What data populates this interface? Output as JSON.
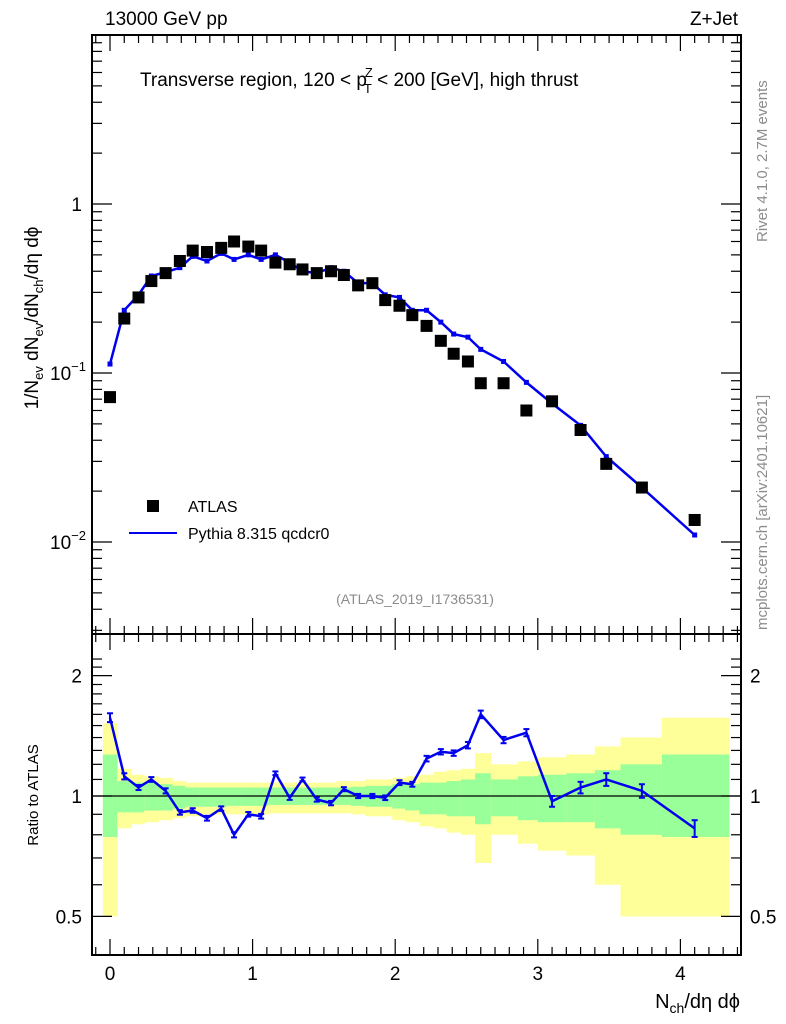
{
  "header": {
    "left": "13000 GeV pp",
    "right": "Z+Jet"
  },
  "side_labels": {
    "rivet": "Rivet 4.1.0,  2.7M events",
    "mcplots": "mcplots.cern.ch [arXiv:2401.10621]"
  },
  "analysis_id": "(ATLAS_2019_I1736531)",
  "colors": {
    "data": "#000000",
    "mc": "#0000ee",
    "band_inner": "#99ff99",
    "band_outer": "#ffff99"
  },
  "chart_data": [
    {
      "type": "scatter",
      "panel": "main",
      "title": "Transverse region, 120 < p_T^Z < 200 [GeV], high thrust",
      "title_parts": {
        "pre": "Transverse region, 120 < p",
        "sup": "Z",
        "sub": "T",
        "post": " < 200 [GeV], high thrust"
      },
      "ylabel": "1/N_ev dN_ev/dN_ch/dη dϕ",
      "ylabel_parts": [
        "1/N",
        "ev",
        " dN",
        "ev",
        "/dN",
        "ch",
        "/dη dϕ"
      ],
      "yscale": "log",
      "ylim": [
        0.003,
        5
      ],
      "xlim": [
        -0.13,
        4.42
      ],
      "ytick_labels": [
        {
          "value": 1,
          "base": "1",
          "exp": ""
        },
        {
          "value": 0.1,
          "base": "10",
          "exp": "−1"
        },
        {
          "value": 0.01,
          "base": "10",
          "exp": "−2"
        }
      ],
      "legend": {
        "placement": "bottom-left",
        "entries": [
          {
            "label": "ATLAS",
            "style": "marker"
          },
          {
            "label": "Pythia 8.315 qcdcr0",
            "style": "line"
          }
        ]
      },
      "series": [
        {
          "name": "ATLAS",
          "x": [
            0.0,
            0.1,
            0.2,
            0.29,
            0.39,
            0.49,
            0.58,
            0.68,
            0.78,
            0.87,
            0.97,
            1.06,
            1.16,
            1.26,
            1.35,
            1.45,
            1.55,
            1.64,
            1.74,
            1.84,
            1.93,
            2.03,
            2.12,
            2.22,
            2.32,
            2.41,
            2.51,
            2.6,
            2.76,
            2.92,
            3.1,
            3.3,
            3.48,
            3.73,
            4.1
          ],
          "y": [
            0.072,
            0.21,
            0.28,
            0.35,
            0.39,
            0.46,
            0.53,
            0.52,
            0.55,
            0.6,
            0.56,
            0.53,
            0.45,
            0.44,
            0.41,
            0.39,
            0.4,
            0.38,
            0.33,
            0.34,
            0.27,
            0.25,
            0.22,
            0.19,
            0.155,
            0.13,
            0.117,
            0.087,
            0.087,
            0.06,
            0.068,
            0.046,
            0.029,
            0.021,
            0.0135
          ]
        },
        {
          "name": "Pythia 8.315 qcdcr0",
          "x": [
            0.0,
            0.1,
            0.2,
            0.29,
            0.39,
            0.49,
            0.58,
            0.68,
            0.78,
            0.87,
            0.97,
            1.06,
            1.16,
            1.26,
            1.35,
            1.45,
            1.55,
            1.64,
            1.74,
            1.84,
            1.93,
            2.03,
            2.12,
            2.22,
            2.32,
            2.41,
            2.51,
            2.6,
            2.76,
            2.92,
            3.1,
            3.3,
            3.48,
            3.73,
            4.1
          ],
          "y": [
            0.113,
            0.235,
            0.29,
            0.375,
            0.395,
            0.42,
            0.49,
            0.46,
            0.51,
            0.47,
            0.5,
            0.47,
            0.5,
            0.45,
            0.4,
            0.39,
            0.42,
            0.4,
            0.34,
            0.34,
            0.29,
            0.28,
            0.235,
            0.235,
            0.2,
            0.17,
            0.163,
            0.138,
            0.117,
            0.088,
            0.066,
            0.049,
            0.032,
            0.021,
            0.011
          ]
        }
      ]
    },
    {
      "type": "line",
      "panel": "ratio",
      "ylabel": "Ratio to ATLAS",
      "yscale": "log",
      "ylim": [
        0.4,
        2.3
      ],
      "xlim": [
        -0.13,
        4.42
      ],
      "xlabel": "N_ch/dη dϕ",
      "xlabel_parts": [
        "N",
        "ch",
        "/dη dϕ"
      ],
      "xtick_labels": [
        "0",
        "1",
        "2",
        "3",
        "4"
      ],
      "xticks": [
        0,
        1,
        2,
        3,
        4
      ],
      "ytick_labels": [
        "0.5",
        "1",
        "2"
      ],
      "yticks": [
        0.5,
        1,
        2
      ],
      "bands": {
        "edges": [
          -0.05,
          0.05,
          0.15,
          0.24,
          0.34,
          0.44,
          0.53,
          0.63,
          0.73,
          0.82,
          0.92,
          1.01,
          1.11,
          1.21,
          1.3,
          1.4,
          1.5,
          1.59,
          1.69,
          1.79,
          1.88,
          1.98,
          2.07,
          2.17,
          2.27,
          2.36,
          2.46,
          2.56,
          2.67,
          2.86,
          3.0,
          3.2,
          3.4,
          3.58,
          3.87,
          4.35
        ],
        "inner_lo": [
          0.79,
          0.91,
          0.91,
          0.92,
          0.92,
          0.93,
          0.94,
          0.94,
          0.94,
          0.945,
          0.945,
          0.945,
          0.95,
          0.95,
          0.95,
          0.95,
          0.95,
          0.95,
          0.945,
          0.94,
          0.94,
          0.93,
          0.92,
          0.9,
          0.9,
          0.89,
          0.89,
          0.85,
          0.89,
          0.87,
          0.86,
          0.86,
          0.83,
          0.8,
          0.79
        ],
        "inner_hi": [
          1.27,
          1.09,
          1.08,
          1.08,
          1.07,
          1.06,
          1.05,
          1.05,
          1.05,
          1.05,
          1.05,
          1.05,
          1.05,
          1.05,
          1.05,
          1.05,
          1.05,
          1.05,
          1.055,
          1.06,
          1.06,
          1.07,
          1.07,
          1.08,
          1.08,
          1.09,
          1.1,
          1.14,
          1.1,
          1.12,
          1.13,
          1.14,
          1.16,
          1.2,
          1.27
        ],
        "outer_lo": [
          0.5,
          0.83,
          0.85,
          0.86,
          0.87,
          0.88,
          0.89,
          0.9,
          0.9,
          0.9,
          0.9,
          0.9,
          0.905,
          0.905,
          0.905,
          0.905,
          0.905,
          0.905,
          0.9,
          0.89,
          0.89,
          0.87,
          0.86,
          0.84,
          0.83,
          0.81,
          0.8,
          0.68,
          0.8,
          0.76,
          0.73,
          0.71,
          0.6,
          0.5,
          0.5
        ],
        "outer_hi": [
          1.52,
          1.17,
          1.13,
          1.12,
          1.11,
          1.09,
          1.08,
          1.08,
          1.08,
          1.08,
          1.08,
          1.08,
          1.08,
          1.08,
          1.08,
          1.08,
          1.08,
          1.09,
          1.09,
          1.1,
          1.1,
          1.11,
          1.12,
          1.13,
          1.15,
          1.16,
          1.17,
          1.28,
          1.2,
          1.22,
          1.25,
          1.27,
          1.33,
          1.4,
          1.57
        ]
      },
      "series": [
        {
          "name": "Pythia 8.315 qcdcr0 / ATLAS",
          "x": [
            0.0,
            0.1,
            0.2,
            0.29,
            0.39,
            0.49,
            0.58,
            0.68,
            0.78,
            0.87,
            0.97,
            1.06,
            1.16,
            1.26,
            1.35,
            1.45,
            1.55,
            1.64,
            1.74,
            1.84,
            1.93,
            2.03,
            2.12,
            2.22,
            2.32,
            2.41,
            2.51,
            2.6,
            2.76,
            2.92,
            3.1,
            3.3,
            3.48,
            3.73,
            4.1
          ],
          "y": [
            1.57,
            1.12,
            1.05,
            1.1,
            1.03,
            0.91,
            0.92,
            0.88,
            0.93,
            0.8,
            0.9,
            0.89,
            1.14,
            0.99,
            1.1,
            0.98,
            0.96,
            1.04,
            1.0,
            1.0,
            0.99,
            1.08,
            1.07,
            1.24,
            1.29,
            1.28,
            1.34,
            1.6,
            1.38,
            1.44,
            0.97,
            1.05,
            1.1,
            1.03,
            0.83
          ],
          "yerr": [
            0.04,
            0.02,
            0.015,
            0.015,
            0.015,
            0.012,
            0.012,
            0.012,
            0.012,
            0.012,
            0.012,
            0.012,
            0.012,
            0.012,
            0.012,
            0.012,
            0.012,
            0.012,
            0.012,
            0.012,
            0.013,
            0.015,
            0.015,
            0.02,
            0.02,
            0.02,
            0.025,
            0.035,
            0.025,
            0.03,
            0.03,
            0.035,
            0.04,
            0.04,
            0.04
          ]
        }
      ]
    }
  ]
}
